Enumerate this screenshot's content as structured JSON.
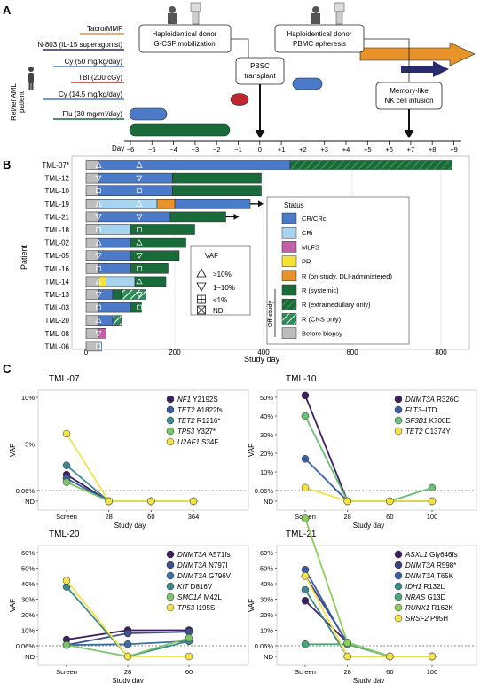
{
  "panel_a": {
    "letter": "A",
    "side_label": [
      "Rel/ref AML",
      "patient"
    ],
    "day_axis_label": "Day",
    "days": [
      "−6",
      "−5",
      "−4",
      "−3",
      "−2",
      "−1",
      "0",
      "+1",
      "+2",
      "+3",
      "+4",
      "+5",
      "+6",
      "+7",
      "+8",
      "+9"
    ],
    "treatments": [
      {
        "label": "Tacro/MMF",
        "color": "#e8922a"
      },
      {
        "label": "N-803 (IL-15 superagonist)",
        "color": "#2a2a6e"
      },
      {
        "label": "Cy (50 mg/kg/day)",
        "color": "#4a7ac8"
      },
      {
        "label": "TBI (200 cGy)",
        "color": "#c0272d"
      },
      {
        "label": "Cy (14.5 mg/kg/day)",
        "color": "#4a7ac8"
      },
      {
        "label": "Flu (30 mg/m²/day)",
        "color": "#1a6b3a"
      }
    ],
    "callouts": [
      [
        "Haploidentical donor",
        "G-CSF mobilization"
      ],
      [
        "PBSC",
        "transplant"
      ],
      [
        "Haploidentical donor",
        "PBMC apheresis"
      ],
      [
        "Memory-like",
        "NK cell infusion"
      ]
    ]
  },
  "panel_b": {
    "letter": "B",
    "y_axis_label": "Patient",
    "x_axis_label": "Study day",
    "x_ticks": [
      "0",
      "200",
      "400",
      "600",
      "800"
    ],
    "patients": [
      "TML-07*",
      "TML-12",
      "TML-10",
      "TML-19",
      "TML-21",
      "TML-18",
      "TML-02",
      "TML-05",
      "TML-16",
      "TML-14",
      "TML-13",
      "TML-03",
      "TML-20",
      "TML-08",
      "TML-06"
    ],
    "legend_status": {
      "title": "Status",
      "items": [
        {
          "label": "CR/CRc",
          "color": "#4a7ac8"
        },
        {
          "label": "CRi",
          "color": "#a8d4f0"
        },
        {
          "label": "MLFS",
          "color": "#c35fa8"
        },
        {
          "label": "PR",
          "color": "#f5e234"
        },
        {
          "label": "R (on-study, DLI-administered)",
          "color": "#e8922a"
        },
        {
          "label": "R (systemic)",
          "color": "#1a6b3a"
        },
        {
          "label": "R (extramedullary only)",
          "color": "#1a6b3a"
        },
        {
          "label": "R (CNS only)",
          "color": "#2e8b57"
        },
        {
          "label": "Before biopsy",
          "color": "#bdbdbd"
        }
      ],
      "offstudy_label": "Off-study"
    },
    "legend_vaf": {
      "title": "VAF",
      "items": [
        ">10%",
        "1–10%",
        "<1%",
        "ND"
      ]
    }
  },
  "panel_c": {
    "letter": "C",
    "subplots": [
      {
        "title": "TML-07",
        "xlabel": "Study day",
        "ylabel": "VAF",
        "x_ticks": [
          "Screen",
          "28",
          "60",
          "364"
        ],
        "y_ticks": [
          "10%",
          "5%",
          "0.06%",
          "ND"
        ],
        "legend": [
          {
            "gene": "NF1",
            "mut": "Y2192S",
            "color": "#3b1f5e"
          },
          {
            "gene": "TET2",
            "mut": "A1822fs",
            "color": "#3d5fa0"
          },
          {
            "gene": "TET2",
            "mut": "R1216*",
            "color": "#3f8a8c"
          },
          {
            "gene": "TP53",
            "mut": "Y327*",
            "color": "#7ac46a"
          },
          {
            "gene": "U2AF1",
            "mut": "S34F",
            "color": "#f3e34a"
          }
        ]
      },
      {
        "title": "TML-10",
        "xlabel": "Study day",
        "ylabel": "VAF",
        "x_ticks": [
          "Screen",
          "28",
          "60",
          "100"
        ],
        "y_ticks": [
          "50%",
          "40%",
          "30%",
          "20%",
          "10%",
          "0.06%",
          "ND"
        ],
        "legend": [
          {
            "gene": "DNMT3A",
            "mut": "R326C",
            "color": "#3b1f5e"
          },
          {
            "gene": "FLT3",
            "mut": "–ITD",
            "color": "#3d5fa0"
          },
          {
            "gene": "SF3B1",
            "mut": "K700E",
            "color": "#6cbf7a"
          },
          {
            "gene": "TET2",
            "mut": "C1374Y",
            "color": "#f3e34a"
          }
        ]
      },
      {
        "title": "TML-20",
        "xlabel": "Study day",
        "ylabel": "VAF",
        "x_ticks": [
          "Screen",
          "28",
          "60"
        ],
        "y_ticks": [
          "60%",
          "50%",
          "40%",
          "30%",
          "20%",
          "10%",
          "0.06%",
          "ND"
        ],
        "legend": [
          {
            "gene": "DNMT3A",
            "mut": "A571fs",
            "color": "#3b1f5e"
          },
          {
            "gene": "DNMT3A",
            "mut": "N797I",
            "color": "#3d4f8e"
          },
          {
            "gene": "DNMT3A",
            "mut": "G796V",
            "color": "#3d6fa0"
          },
          {
            "gene": "KIT",
            "mut": "D816V",
            "color": "#3f8a8c"
          },
          {
            "gene": "SMC1A",
            "mut": "M42L",
            "color": "#7ac46a"
          },
          {
            "gene": "TP53",
            "mut": "I195S",
            "color": "#f3e34a"
          }
        ]
      },
      {
        "title": "TML-21",
        "xlabel": "Study day",
        "ylabel": "VAF",
        "x_ticks": [
          "Screen",
          "28",
          "60",
          "100"
        ],
        "y_ticks": [
          "60%",
          "50%",
          "40%",
          "30%",
          "20%",
          "10%",
          "0.06%",
          "ND"
        ],
        "legend": [
          {
            "gene": "ASXL1",
            "mut": "Gly646fs",
            "color": "#3b1f5e"
          },
          {
            "gene": "DNMT3A",
            "mut": "R598*",
            "color": "#3d3f80"
          },
          {
            "gene": "DNMT3A",
            "mut": "T65K",
            "color": "#3d5fa0"
          },
          {
            "gene": "IDH1",
            "mut": "R132L",
            "color": "#3f8a8c"
          },
          {
            "gene": "NRAS",
            "mut": "G13D",
            "color": "#4aa87a"
          },
          {
            "gene": "RUNX1",
            "mut": "R162K",
            "color": "#8ccf5a"
          },
          {
            "gene": "SRSF2",
            "mut": "P95H",
            "color": "#f3e34a"
          }
        ]
      }
    ]
  }
}
